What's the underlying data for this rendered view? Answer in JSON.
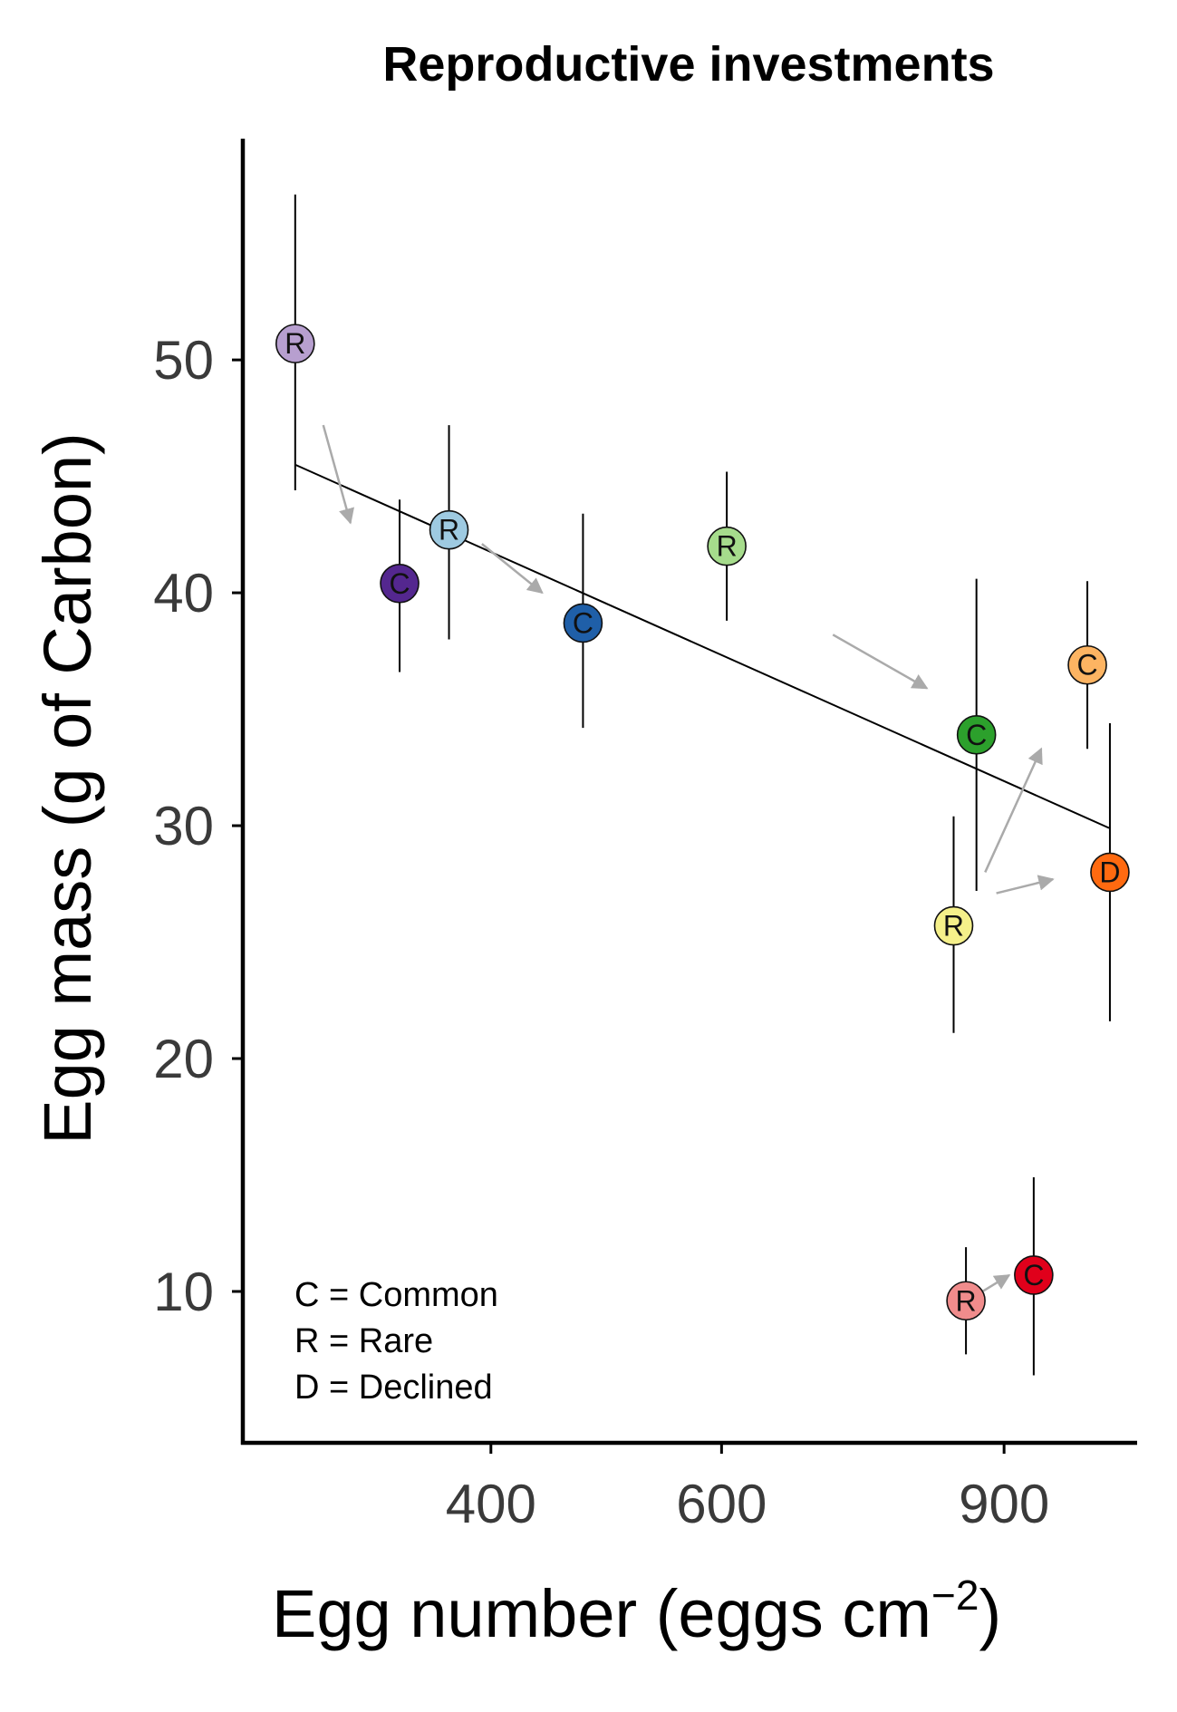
{
  "chart_data": {
    "type": "scatter",
    "title": "Reproductive investments",
    "xlabel_main": "Egg number (eggs cm",
    "xlabel_sup": "−2",
    "xlabel_close": ")",
    "ylabel": "Egg mass (g of Carbon)",
    "x_scale": "sqrt",
    "xlim": [
      230,
      1060
    ],
    "ylim": [
      3.5,
      59.5
    ],
    "x_ticks": [
      400,
      600,
      900
    ],
    "y_ticks": [
      10,
      20,
      30,
      40,
      50
    ],
    "legend": [
      "C = Common",
      "R = Rare",
      "D = Declined"
    ],
    "legend_position": "bottom-left",
    "grid": false,
    "points": [
      {
        "label": "R",
        "x": 262,
        "y": 50.7,
        "y_low": 44.4,
        "y_high": 57.1,
        "color": "#b79fcf"
      },
      {
        "label": "C",
        "x": 332,
        "y": 40.4,
        "y_low": 36.6,
        "y_high": 44.0,
        "color": "#54278f"
      },
      {
        "label": "R",
        "x": 368,
        "y": 42.7,
        "y_low": 38.0,
        "y_high": 47.2,
        "color": "#9ecae1"
      },
      {
        "label": "C",
        "x": 475,
        "y": 38.7,
        "y_low": 34.2,
        "y_high": 43.4,
        "color": "#1f5fa8"
      },
      {
        "label": "R",
        "x": 605,
        "y": 42.0,
        "y_low": 38.8,
        "y_high": 45.2,
        "color": "#a6dc8c"
      },
      {
        "label": "R",
        "x": 842,
        "y": 25.7,
        "y_low": 21.1,
        "y_high": 30.4,
        "color": "#f5f08a"
      },
      {
        "label": "C",
        "x": 868,
        "y": 33.9,
        "y_low": 27.2,
        "y_high": 40.6,
        "color": "#2ca02c"
      },
      {
        "label": "R",
        "x": 856,
        "y": 9.6,
        "y_low": 7.3,
        "y_high": 11.9,
        "color": "#f08c8c"
      },
      {
        "label": "C",
        "x": 935,
        "y": 10.7,
        "y_low": 6.4,
        "y_high": 14.9,
        "color": "#e0001b"
      },
      {
        "label": "C",
        "x": 1000,
        "y": 36.9,
        "y_low": 33.3,
        "y_high": 40.5,
        "color": "#fdb462"
      },
      {
        "label": "D",
        "x": 1028,
        "y": 28.0,
        "y_low": 21.6,
        "y_high": 34.4,
        "color": "#ff6a10"
      }
    ],
    "trend_line": {
      "x_start": 262,
      "y_start": 45.5,
      "x_end": 1027,
      "y_end": 29.9,
      "color": "#000000"
    },
    "arrows": [
      {
        "x1": 280,
        "y1": 47.2,
        "x2": 298,
        "y2": 43.0
      },
      {
        "x1": 393,
        "y1": 42.1,
        "x2": 441,
        "y2": 40.0
      },
      {
        "x1": 711,
        "y1": 38.2,
        "x2": 812,
        "y2": 35.9
      },
      {
        "x1": 878,
        "y1": 28.0,
        "x2": 944,
        "y2": 33.3
      },
      {
        "x1": 891,
        "y1": 27.1,
        "x2": 958,
        "y2": 27.7
      },
      {
        "x1": 875,
        "y1": 10.0,
        "x2": 906,
        "y2": 10.7
      }
    ],
    "arrow_color": "#aaaaaa"
  }
}
